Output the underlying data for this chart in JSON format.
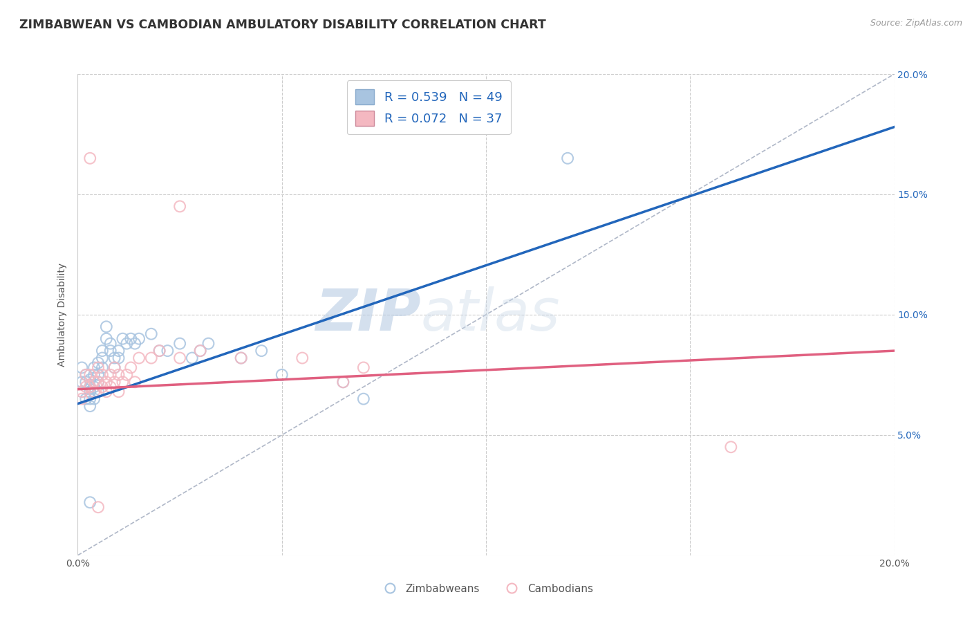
{
  "title": "ZIMBABWEAN VS CAMBODIAN AMBULATORY DISABILITY CORRELATION CHART",
  "source_text": "Source: ZipAtlas.com",
  "ylabel": "Ambulatory Disability",
  "xlim": [
    0.0,
    0.2
  ],
  "ylim": [
    0.0,
    0.2
  ],
  "x_ticks": [
    0.0,
    0.05,
    0.1,
    0.15,
    0.2
  ],
  "x_tick_labels": [
    "0.0%",
    "",
    "",
    "",
    "20.0%"
  ],
  "y_ticks": [
    0.0,
    0.05,
    0.1,
    0.15,
    0.2
  ],
  "y_tick_labels_right": [
    "",
    "5.0%",
    "10.0%",
    "15.0%",
    "20.0%"
  ],
  "zimbabwe_color": "#a8c4e0",
  "cambodian_color": "#f4b8c1",
  "zimbabwe_R": 0.539,
  "zimbabwe_N": 49,
  "cambodian_R": 0.072,
  "cambodian_N": 37,
  "watermark_ZIP": "ZIP",
  "watermark_atlas": "atlas",
  "watermark_color": "#c8d8ea",
  "zimbabwe_scatter_x": [
    0.001,
    0.001,
    0.001,
    0.002,
    0.002,
    0.002,
    0.003,
    0.003,
    0.003,
    0.003,
    0.003,
    0.004,
    0.004,
    0.004,
    0.004,
    0.005,
    0.005,
    0.005,
    0.005,
    0.006,
    0.006,
    0.006,
    0.007,
    0.007,
    0.008,
    0.008,
    0.009,
    0.009,
    0.01,
    0.01,
    0.011,
    0.012,
    0.013,
    0.014,
    0.015,
    0.018,
    0.02,
    0.022,
    0.025,
    0.028,
    0.03,
    0.032,
    0.04,
    0.045,
    0.05,
    0.065,
    0.07,
    0.12,
    0.003
  ],
  "zimbabwe_scatter_y": [
    0.078,
    0.072,
    0.068,
    0.075,
    0.072,
    0.065,
    0.07,
    0.073,
    0.068,
    0.065,
    0.062,
    0.078,
    0.075,
    0.07,
    0.065,
    0.08,
    0.075,
    0.072,
    0.068,
    0.085,
    0.082,
    0.078,
    0.09,
    0.095,
    0.088,
    0.085,
    0.082,
    0.078,
    0.085,
    0.082,
    0.09,
    0.088,
    0.09,
    0.088,
    0.09,
    0.092,
    0.085,
    0.085,
    0.088,
    0.082,
    0.085,
    0.088,
    0.082,
    0.085,
    0.075,
    0.072,
    0.065,
    0.165,
    0.022
  ],
  "cambodian_scatter_x": [
    0.001,
    0.001,
    0.002,
    0.002,
    0.003,
    0.003,
    0.003,
    0.004,
    0.004,
    0.005,
    0.005,
    0.005,
    0.006,
    0.006,
    0.007,
    0.007,
    0.008,
    0.008,
    0.009,
    0.009,
    0.01,
    0.01,
    0.011,
    0.012,
    0.013,
    0.014,
    0.015,
    0.018,
    0.02,
    0.025,
    0.03,
    0.04,
    0.055,
    0.065,
    0.07,
    0.16,
    0.025
  ],
  "cambodian_scatter_y": [
    0.068,
    0.065,
    0.075,
    0.07,
    0.165,
    0.075,
    0.07,
    0.072,
    0.068,
    0.078,
    0.072,
    0.02,
    0.075,
    0.07,
    0.072,
    0.068,
    0.075,
    0.07,
    0.078,
    0.072,
    0.075,
    0.068,
    0.072,
    0.075,
    0.078,
    0.072,
    0.082,
    0.082,
    0.085,
    0.082,
    0.085,
    0.082,
    0.082,
    0.072,
    0.078,
    0.045,
    0.145
  ],
  "blue_trend_x": [
    0.0,
    0.2
  ],
  "blue_trend_y": [
    0.063,
    0.178
  ],
  "pink_trend_x": [
    0.0,
    0.2
  ],
  "pink_trend_y": [
    0.069,
    0.085
  ],
  "diag_line_x": [
    0.0,
    0.2
  ],
  "diag_line_y": [
    0.0,
    0.2
  ],
  "background_color": "#ffffff",
  "grid_color": "#cccccc",
  "title_fontsize": 12.5,
  "axis_label_fontsize": 10,
  "tick_fontsize": 10,
  "marker_size": 130,
  "legend_fontsize": 13
}
